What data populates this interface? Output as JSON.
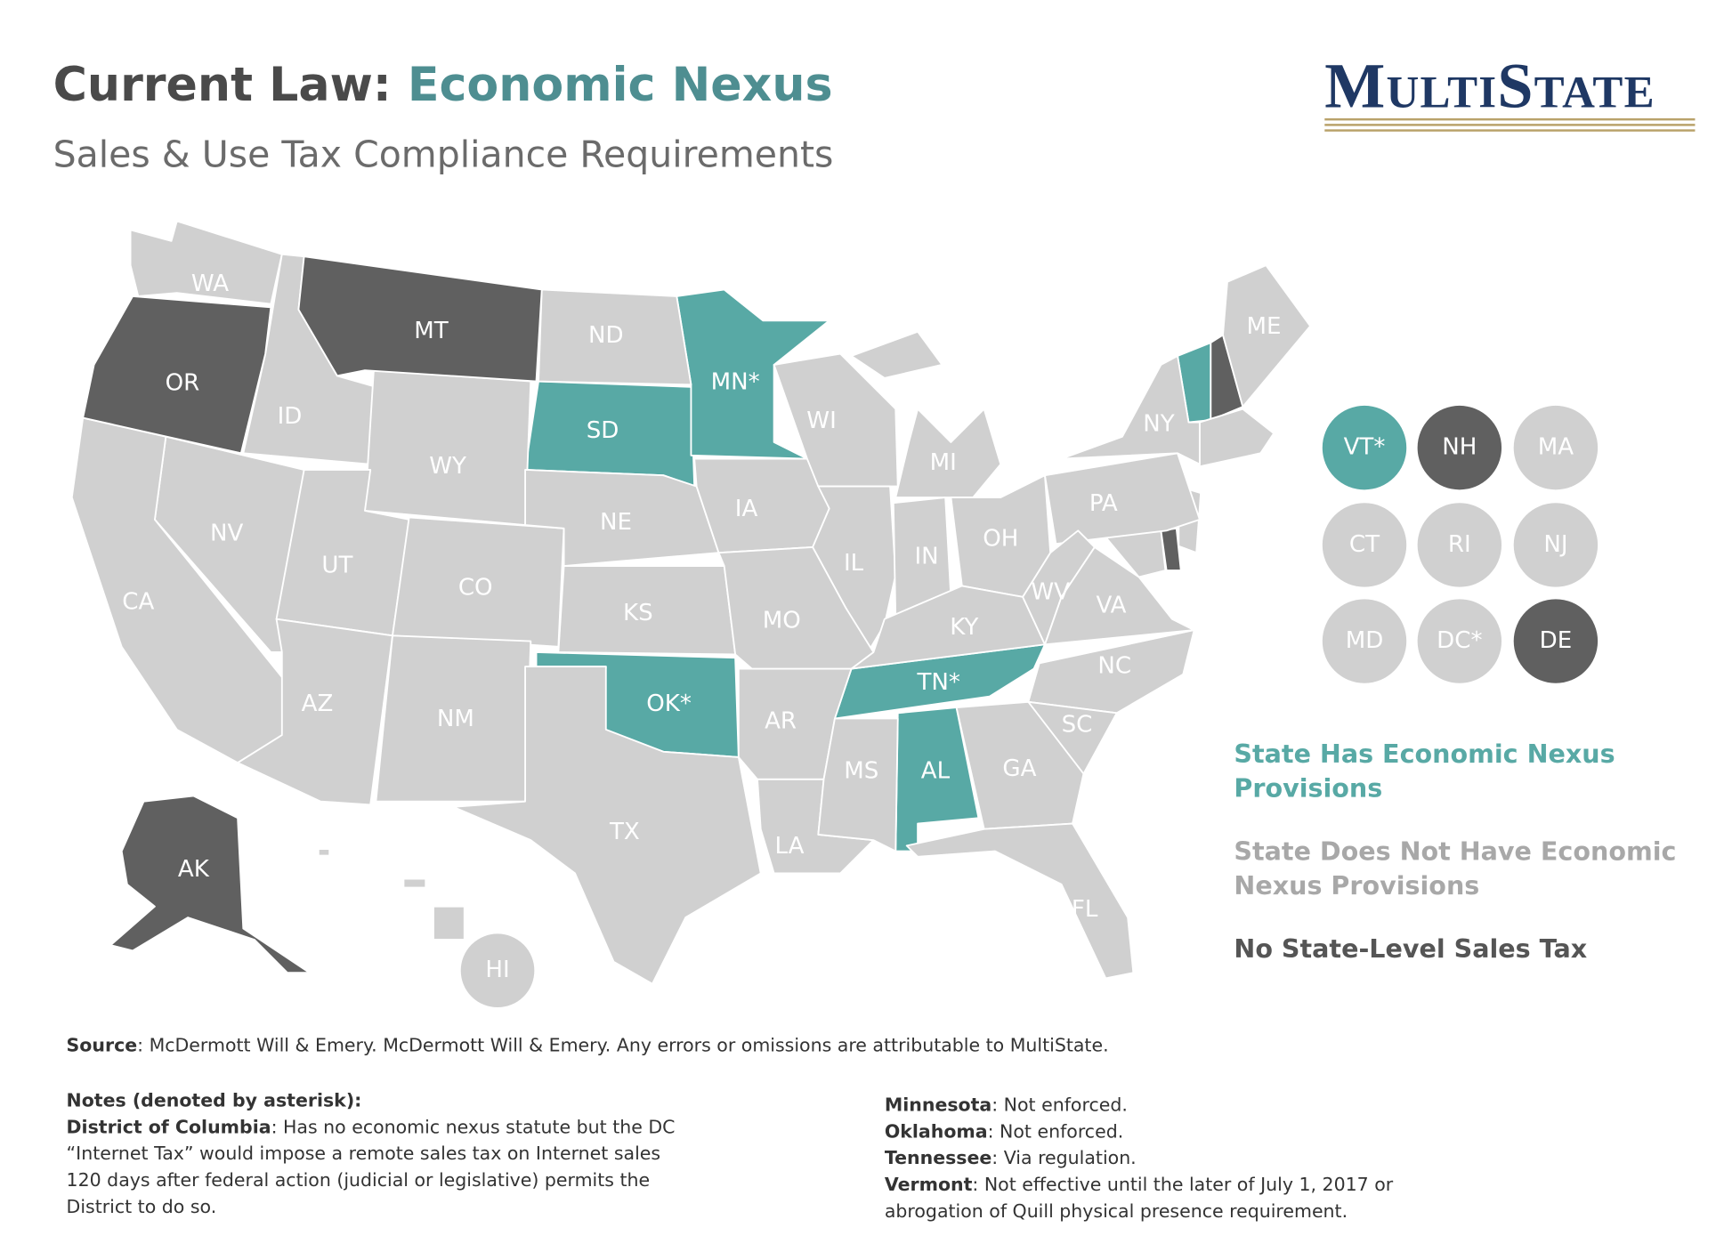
{
  "header": {
    "title_prefix": "Current Law:",
    "title_highlight": "Economic Nexus",
    "subtitle": "Sales & Use Tax Compliance Requirements",
    "logo": "MultiState"
  },
  "groups": [
    {
      "label": "State Has Economic Nexus Provisions",
      "color": "#58a9a5",
      "states": [
        "SD",
        "MN*",
        "OK*",
        "TN*",
        "AL"
      ],
      "circles": [
        "VT*"
      ]
    },
    {
      "label": "State Does Not Have Economic Nexus Provisions",
      "color": "#d0d0d0",
      "states": [
        "WA",
        "ID",
        "ND",
        "WY",
        "NV",
        "UT",
        "CO",
        "NE",
        "KS",
        "IA",
        "WI",
        "MI",
        "IL",
        "IN",
        "OH",
        "PA",
        "NY",
        "ME",
        "CA",
        "AZ",
        "NM",
        "TX",
        "AR",
        "MO",
        "LA",
        "MS",
        "KY",
        "WV",
        "VA",
        "NC",
        "SC",
        "GA",
        "FL",
        "HI"
      ],
      "circles": [
        "MA",
        "CT",
        "RI",
        "NJ",
        "MD",
        "DC*"
      ]
    },
    {
      "label": "No State-Level Sales Tax",
      "color": "#606060",
      "states": [
        "OR",
        "MT",
        "AK"
      ],
      "circles": [
        "NH",
        "DE"
      ]
    }
  ],
  "source": {
    "label": "Source",
    "text": ": McDermott Will & Emery. McDermott Will & Emery. Any errors or omissions are attributable to MultiState."
  },
  "notes": {
    "heading": "Notes (denoted by asterisk):",
    "left": [
      {
        "label": "District of Columbia",
        "text": ": Has no economic nexus statute but the DC “Internet Tax” would impose a remote sales tax on Internet sales 120 days after federal action (judicial or legislative) permits the District to do so."
      }
    ],
    "right": [
      {
        "label": "Minnesota",
        "text": ": Not enforced."
      },
      {
        "label": "Oklahoma",
        "text": ": Not enforced."
      },
      {
        "label": "Tennessee",
        "text": ": Via regulation."
      },
      {
        "label": "Vermont",
        "text": ": Not effective until the later of July 1, 2017 or abrogation of Quill physical presence requirement."
      }
    ]
  }
}
